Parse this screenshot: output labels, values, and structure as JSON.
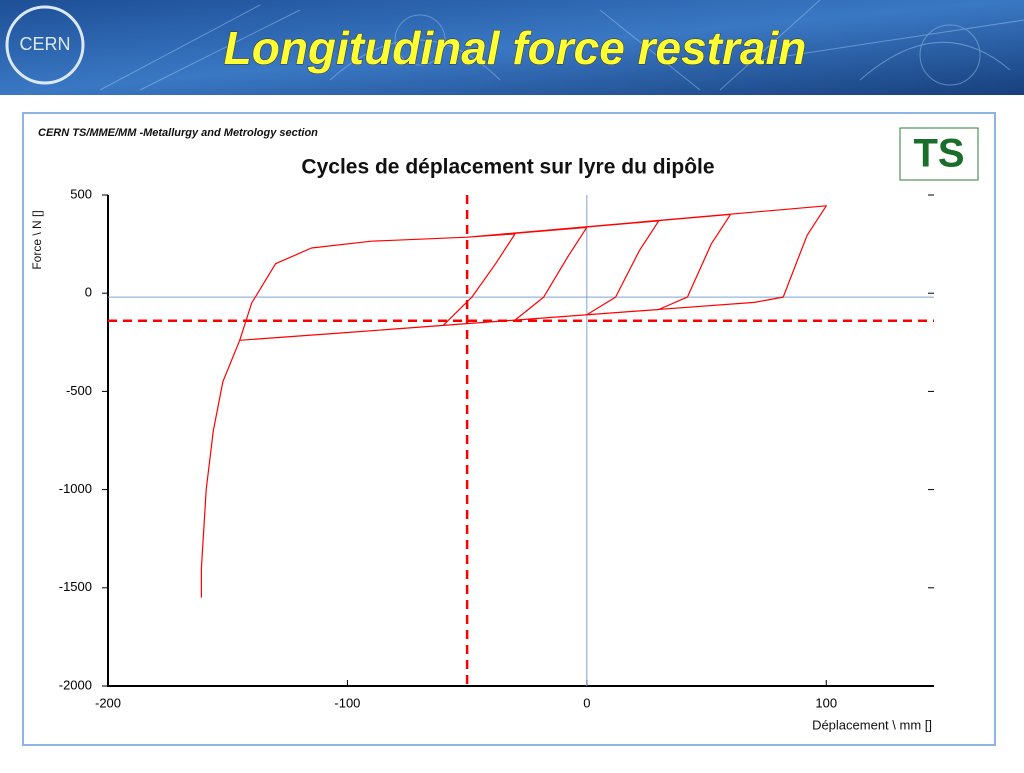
{
  "header": {
    "title": "Longitudinal force restrain",
    "logo_left": "CERN",
    "logo_right": "TS"
  },
  "chart_data": {
    "type": "line",
    "caption": "CERN TS/MME/MM -Metallurgy and Metrology section",
    "title": "Cycles de déplacement sur lyre du dipôle",
    "xlabel": "Déplacement \\ mm []",
    "ylabel": "Force \\ N []",
    "xlim": [
      -200,
      145
    ],
    "ylim": [
      -2000,
      500
    ],
    "xticks": [
      -200,
      -100,
      0,
      100
    ],
    "yticks": [
      500,
      0,
      -500,
      -1000,
      -1500,
      -2000
    ],
    "ref_lines": [
      {
        "axis": "x",
        "value": -50,
        "color": "#ff0000",
        "dashed": true
      },
      {
        "axis": "y",
        "value": -140,
        "color": "#ff0000",
        "dashed": true
      },
      {
        "axis": "x",
        "value": 0,
        "color": "#7fa3cf",
        "dashed": false
      },
      {
        "axis": "y",
        "value": -20,
        "color": "#7fa3cf",
        "dashed": false
      }
    ],
    "series": [
      {
        "color": "#ff0000",
        "x": [
          -161,
          -161,
          -159,
          -156,
          -152,
          -145,
          -140,
          -130,
          -115,
          -90,
          -50,
          -30,
          -38,
          -48,
          -60,
          -100,
          -145,
          -140,
          -130,
          -115,
          -90,
          -50,
          0,
          -8,
          -18,
          -30,
          -50,
          -100,
          -145,
          -140,
          -130,
          -115,
          -90,
          -50,
          30,
          22,
          12,
          0,
          -50,
          -100,
          -145,
          -140,
          -130,
          -115,
          -90,
          -50,
          60,
          52,
          42,
          30,
          -50,
          -100,
          -145,
          -140,
          -130,
          -115,
          -90,
          -50,
          100,
          92,
          82,
          70,
          -50,
          -100,
          -145
        ],
        "values": [
          -1550,
          -1400,
          -1000,
          -700,
          -450,
          -240,
          -50,
          150,
          230,
          265,
          285,
          302,
          152,
          -20,
          -164,
          -200,
          -240,
          -50,
          150,
          230,
          265,
          285,
          335,
          185,
          -20,
          -137,
          -155,
          -200,
          -240,
          -50,
          150,
          230,
          265,
          285,
          368,
          218,
          -20,
          -110,
          -155,
          -200,
          -240,
          -50,
          150,
          230,
          265,
          285,
          401,
          251,
          -20,
          -83,
          -155,
          -200,
          -240,
          -50,
          150,
          230,
          265,
          285,
          445,
          295,
          -20,
          -47,
          -155,
          -200,
          -240
        ]
      }
    ]
  }
}
